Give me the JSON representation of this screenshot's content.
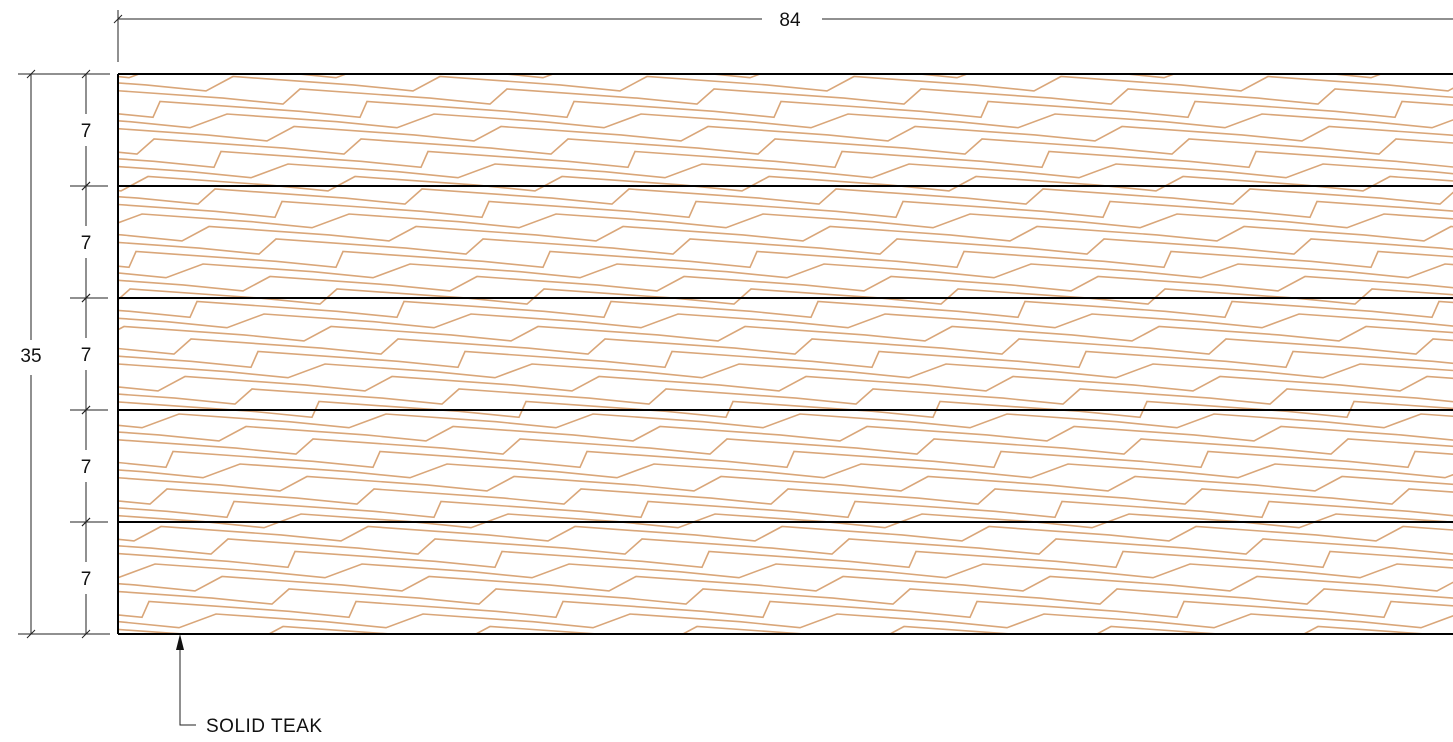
{
  "overall_width_label": "84",
  "overall_height_label": "35",
  "board_heights": [
    "7",
    "7",
    "7",
    "7",
    "7"
  ],
  "material_label": "SOLID TEAK",
  "colors": {
    "wood_grain": "#D9A679",
    "outline": "#000000",
    "dimension": "#222222",
    "background": "#FFFFFF"
  }
}
